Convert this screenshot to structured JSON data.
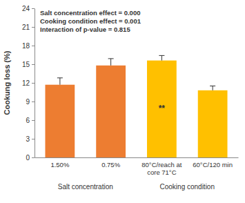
{
  "chart_data": {
    "type": "bar",
    "y_label": "Cookung loss (%)",
    "categories": [
      "1.50%",
      "0.75%",
      "80°C/reach at core 71°C",
      "60°C/120 min"
    ],
    "values": [
      11.7,
      14.8,
      15.6,
      10.8
    ],
    "errors": [
      1.1,
      1.1,
      0.8,
      0.7
    ],
    "colors": [
      "#ed7d31",
      "#ed7d31",
      "#ffc000",
      "#ffc000"
    ],
    "significance_labels": [
      null,
      null,
      "**",
      null
    ],
    "group_labels": [
      "Salt concentration",
      "Cooking condition"
    ],
    "notes": [
      "Salt concentration effect = 0.000",
      "Cooking condition effect = 0.001",
      "Interaction of p-value = 0.815"
    ],
    "ylim": [
      0,
      24
    ],
    "yticks": [
      0,
      3,
      6,
      9,
      12,
      15,
      18,
      21,
      24
    ],
    "grid": false
  }
}
